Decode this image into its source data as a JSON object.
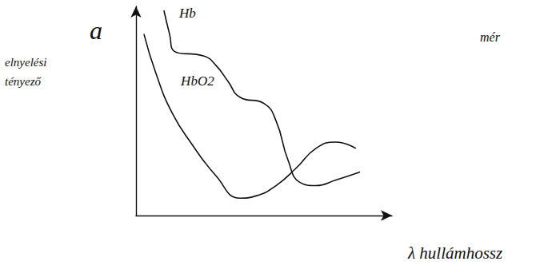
{
  "chart_data": {
    "type": "line",
    "ylabel": "a",
    "xlabel": "λ hullámhossz",
    "annotations": [
      "elnyelési tényező",
      "mér"
    ],
    "xlim": [
      0,
      100
    ],
    "ylim": [
      0,
      100
    ],
    "tick_labels": false,
    "grid": false,
    "series": [
      {
        "name": "Hb",
        "color": "#111111",
        "line_style": "solid",
        "x": [
          10.9,
          13.1,
          15,
          26.6,
          31.3,
          35.9,
          40.6,
          50,
          54.7,
          59.4,
          64.1,
          70.3,
          78.1,
          87.5
        ],
        "values": [
          98.1,
          86.8,
          78.5,
          76.2,
          71.7,
          64.2,
          56.6,
          53.6,
          45.3,
          26.4,
          15.8,
          14.3,
          17,
          20.8
        ]
      },
      {
        "name": "HbO2",
        "color": "#111111",
        "line_style": "solid",
        "x": [
          3.1,
          7.8,
          14.1,
          21.9,
          31.3,
          40.6,
          46.9,
          54.7,
          62.5,
          70.3,
          78.1,
          85.9
        ],
        "values": [
          86.8,
          67.9,
          49.1,
          34,
          18.9,
          8.3,
          9.4,
          14.3,
          22.6,
          32.1,
          35.1,
          32.1
        ]
      }
    ]
  }
}
